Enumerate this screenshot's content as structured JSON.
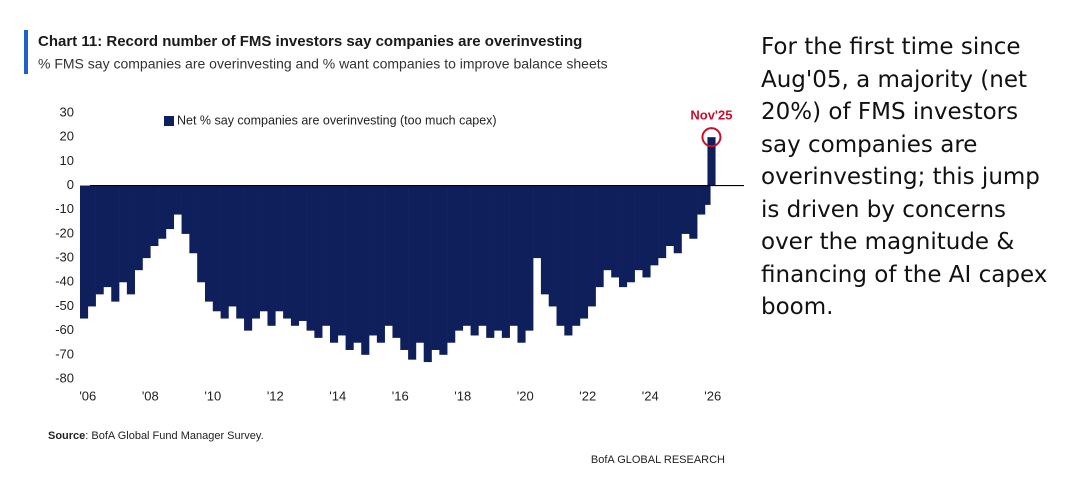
{
  "chart_data": {
    "type": "bar",
    "title": "Chart 11: Record number of FMS investors say companies are overinvesting",
    "subtitle": "% FMS say companies are overinvesting and % want companies to improve balance sheets",
    "series": [
      {
        "name": "Net % say companies are overinvesting (too much capex)",
        "color": "#0f1f5c",
        "x": [
          2005.75,
          2006,
          2006.25,
          2006.5,
          2006.75,
          2007,
          2007.25,
          2007.5,
          2007.75,
          2008,
          2008.25,
          2008.5,
          2008.75,
          2009,
          2009.25,
          2009.5,
          2009.75,
          2010,
          2010.25,
          2010.5,
          2010.75,
          2011,
          2011.25,
          2011.5,
          2011.75,
          2012,
          2012.25,
          2012.5,
          2012.75,
          2013,
          2013.25,
          2013.5,
          2013.75,
          2014,
          2014.25,
          2014.5,
          2014.75,
          2015,
          2015.25,
          2015.5,
          2015.75,
          2016,
          2016.25,
          2016.5,
          2016.75,
          2017,
          2017.25,
          2017.5,
          2017.75,
          2018,
          2018.25,
          2018.5,
          2018.75,
          2019,
          2019.25,
          2019.5,
          2019.75,
          2020,
          2020.25,
          2020.5,
          2020.75,
          2021,
          2021.25,
          2021.5,
          2021.75,
          2022,
          2022.25,
          2022.5,
          2022.75,
          2023,
          2023.25,
          2023.5,
          2023.75,
          2024,
          2024.25,
          2024.5,
          2024.75,
          2025,
          2025.25,
          2025.5,
          2025.67,
          2025.83
        ],
        "values": [
          -55,
          -50,
          -45,
          -42,
          -48,
          -40,
          -45,
          -35,
          -30,
          -25,
          -22,
          -18,
          -12,
          -20,
          -28,
          -40,
          -48,
          -52,
          -55,
          -50,
          -55,
          -60,
          -55,
          -52,
          -58,
          -52,
          -55,
          -58,
          -56,
          -60,
          -63,
          -58,
          -65,
          -62,
          -68,
          -65,
          -70,
          -62,
          -65,
          -58,
          -63,
          -68,
          -72,
          -65,
          -73,
          -68,
          -70,
          -65,
          -60,
          -58,
          -62,
          -58,
          -63,
          -60,
          -63,
          -58,
          -65,
          -60,
          -30,
          -45,
          -50,
          -58,
          -62,
          -58,
          -55,
          -50,
          -42,
          -35,
          -38,
          -42,
          -40,
          -35,
          -38,
          -33,
          -30,
          -25,
          -28,
          -20,
          -22,
          -12,
          -8,
          20
        ]
      }
    ],
    "xlim": [
      2005.75,
      2027
    ],
    "xticks": [
      {
        "value": 2006,
        "label": "'06"
      },
      {
        "value": 2008,
        "label": "'08"
      },
      {
        "value": 2010,
        "label": "'10"
      },
      {
        "value": 2012,
        "label": "'12"
      },
      {
        "value": 2014,
        "label": "'14"
      },
      {
        "value": 2016,
        "label": "'16"
      },
      {
        "value": 2018,
        "label": "'18"
      },
      {
        "value": 2020,
        "label": "'20"
      },
      {
        "value": 2022,
        "label": "'22"
      },
      {
        "value": 2024,
        "label": "'24"
      },
      {
        "value": 2026,
        "label": "'26"
      }
    ],
    "ylim": [
      -80,
      30
    ],
    "yticks": [
      30,
      20,
      10,
      0,
      -10,
      -20,
      -30,
      -40,
      -50,
      -60,
      -70,
      -80
    ],
    "grid": false,
    "legend_position": "top",
    "annotation": {
      "text": "Nov'25",
      "series": 0,
      "index": 81
    },
    "source_label": "Source",
    "source": ": BofA Global Fund Manager Survey.",
    "footer": "BofA GLOBAL RESEARCH"
  },
  "commentary": "For the first time since Aug'05, a majority (net 20%) of FMS investors say companies are overinvesting; this jump is driven by concerns over the magnitude & financing of the AI capex boom."
}
